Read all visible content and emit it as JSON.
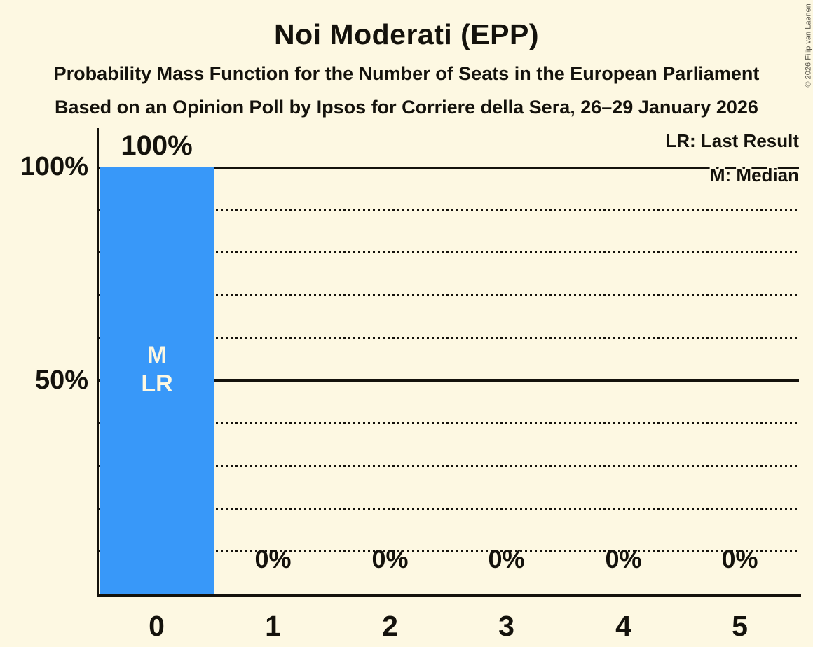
{
  "header": {
    "title": "Noi Moderati (EPP)",
    "subtitle_line1": "Probability Mass Function for the Number of Seats in the European Parliament",
    "subtitle_line2": "Based on an Opinion Poll by Ipsos for Corriere della Sera, 26–29 January 2026"
  },
  "legend": {
    "last_result": "LR: Last Result",
    "median": "M: Median"
  },
  "copyright": "© 2026 Filip van Laenen",
  "chart_data": {
    "type": "bar",
    "title": "Noi Moderati (EPP)",
    "categories": [
      "0",
      "1",
      "2",
      "3",
      "4",
      "5"
    ],
    "values": [
      100,
      0,
      0,
      0,
      0,
      0
    ],
    "value_labels": [
      "100%",
      "0%",
      "0%",
      "0%",
      "0%",
      "0%"
    ],
    "in_bar_labels": [
      "M",
      "LR"
    ],
    "in_bar_labels_meaning": [
      "Median",
      "Last Result"
    ],
    "xlabel": "",
    "ylabel": "",
    "ylim": [
      0,
      100
    ],
    "ytick_values": [
      100,
      50
    ],
    "ytick_labels": [
      "100%",
      "50%"
    ],
    "grid": "dotted horizontal lines every 10%, solid lines at 50% and 100%",
    "legend_position": "top-right",
    "colors": {
      "bar": "#3898f9",
      "background": "#fdf8e2",
      "text": "#14120c",
      "in_bar_text": "#fdf8e2"
    }
  }
}
